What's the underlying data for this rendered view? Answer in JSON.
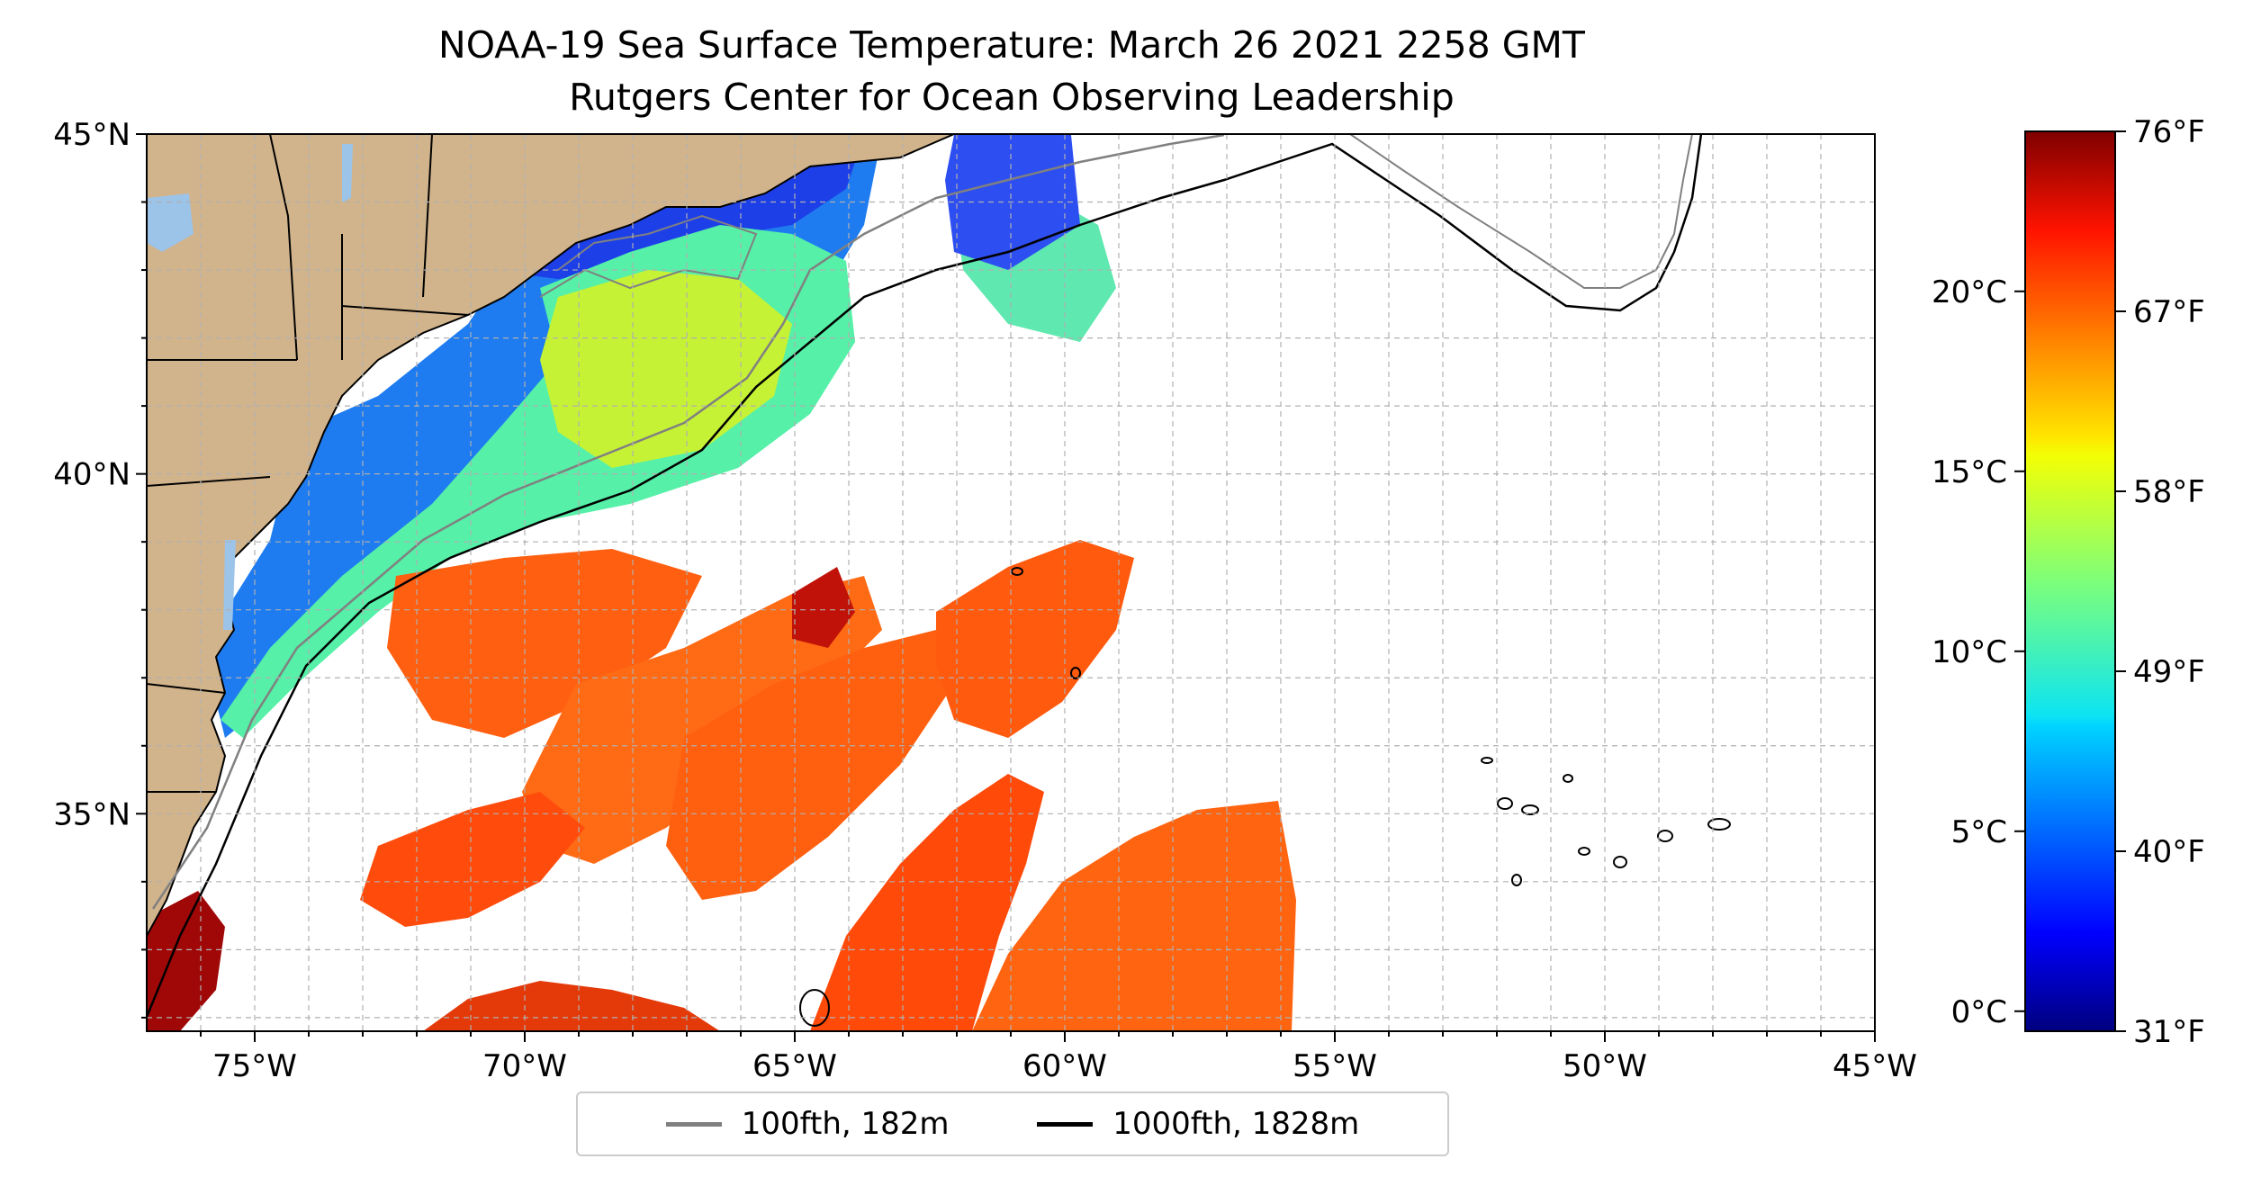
{
  "title": "NOAA-19 Sea Surface Temperature: March 26 2021 2258 GMT",
  "subtitle": "Rutgers Center for Ocean Observing Leadership",
  "map": {
    "lon_range": [
      -77,
      -45
    ],
    "lat_range": [
      31.8,
      45
    ],
    "lon_ticks": [
      "75°W",
      "70°W",
      "65°W",
      "60°W",
      "55°W",
      "50°W",
      "45°W"
    ],
    "lat_ticks": [
      "45°N",
      "40°N",
      "35°N"
    ],
    "land_color": "#d2b48c",
    "water_color": "#9cc3e8",
    "grid": true
  },
  "legend": {
    "items": [
      {
        "label": "100fth, 182m",
        "color": "#808080"
      },
      {
        "label": "1000fth, 1828m",
        "color": "#000000"
      }
    ]
  },
  "colorbar": {
    "colormap": "jet",
    "range_f": [
      31,
      76
    ],
    "celsius_ticks": [
      "20°C",
      "15°C",
      "10°C",
      "5°C",
      "0°C"
    ],
    "fahrenheit_ticks": [
      "76°F",
      "67°F",
      "58°F",
      "49°F",
      "40°F",
      "31°F"
    ]
  }
}
